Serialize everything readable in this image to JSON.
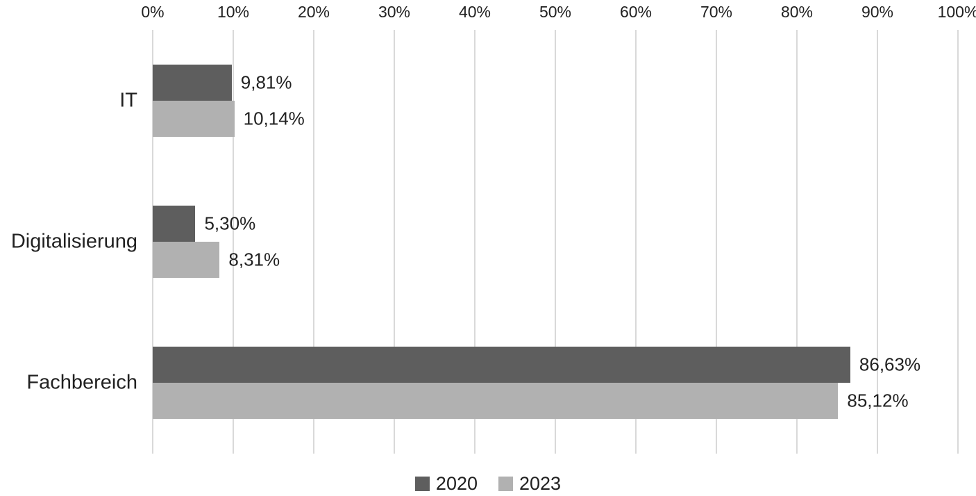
{
  "chart_data": {
    "type": "bar",
    "orientation": "horizontal",
    "title": "",
    "categories": [
      "IT",
      "Digitalisierung",
      "Fachbereich"
    ],
    "series": [
      {
        "name": "2020",
        "color": "#5e5e5e",
        "values": [
          9.81,
          5.3,
          86.63
        ],
        "labels": [
          "9,81%",
          "5,30%",
          "86,63%"
        ]
      },
      {
        "name": "2023",
        "color": "#b1b1b1",
        "values": [
          10.14,
          8.31,
          85.12
        ],
        "labels": [
          "10,14%",
          "8,31%",
          "85,12%"
        ]
      }
    ],
    "x_axis": {
      "position": "top",
      "min": 0,
      "max": 100,
      "ticks": [
        "0%",
        "10%",
        "20%",
        "30%",
        "40%",
        "50%",
        "60%",
        "70%",
        "80%",
        "90%",
        "100%"
      ]
    },
    "grid": true,
    "gridline_color": "#d9d9d9",
    "text_color": "#212121",
    "legend": {
      "position": "bottom",
      "entries": [
        "2020",
        "2023"
      ]
    }
  }
}
